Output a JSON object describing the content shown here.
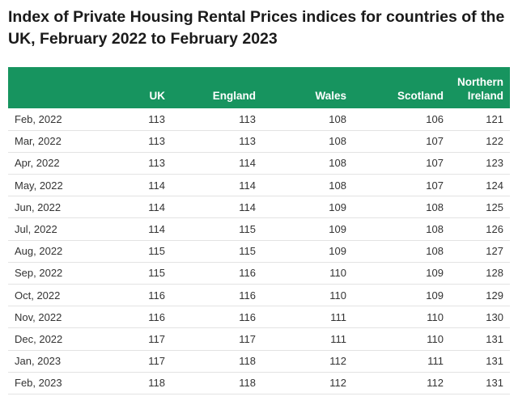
{
  "title": "Index of Private Housing Rental Prices indices for countries of the UK, February 2022 to February 2023",
  "colors": {
    "header_bg": "#17945f",
    "header_text": "#ffffff",
    "row_border": "#e3e3e3"
  },
  "chart_data": {
    "type": "table",
    "title": "Index of Private Housing Rental Prices indices for countries of the UK, February 2022 to February 2023",
    "columns": [
      "",
      "UK",
      "England",
      "Wales",
      "Scotland",
      "Northern Ireland"
    ],
    "rows": [
      [
        "Feb, 2022",
        113,
        113,
        108,
        106,
        121
      ],
      [
        "Mar, 2022",
        113,
        113,
        108,
        107,
        122
      ],
      [
        "Apr, 2022",
        113,
        114,
        108,
        107,
        123
      ],
      [
        "May, 2022",
        114,
        114,
        108,
        107,
        124
      ],
      [
        "Jun, 2022",
        114,
        114,
        109,
        108,
        125
      ],
      [
        "Jul, 2022",
        114,
        115,
        109,
        108,
        126
      ],
      [
        "Aug, 2022",
        115,
        115,
        109,
        108,
        127
      ],
      [
        "Sep, 2022",
        115,
        116,
        110,
        109,
        128
      ],
      [
        "Oct, 2022",
        116,
        116,
        110,
        109,
        129
      ],
      [
        "Nov, 2022",
        116,
        116,
        111,
        110,
        130
      ],
      [
        "Dec, 2022",
        117,
        117,
        111,
        110,
        131
      ],
      [
        "Jan, 2023",
        117,
        118,
        112,
        111,
        131
      ],
      [
        "Feb, 2023",
        118,
        118,
        112,
        112,
        131
      ]
    ]
  }
}
